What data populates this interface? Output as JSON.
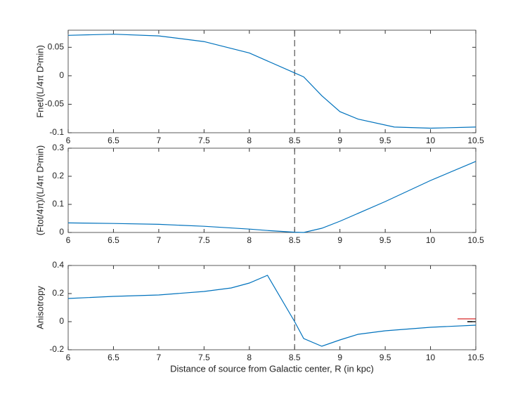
{
  "chart_data": [
    {
      "type": "line",
      "ylabel": "Fnet/(L/4π D²min)",
      "x": [
        6,
        6.5,
        7,
        7.5,
        7.8,
        8,
        8.2,
        8.5,
        8.6,
        8.8,
        9,
        9.2,
        9.6,
        10,
        10.5
      ],
      "series": [
        {
          "color": "#0072bd",
          "values": [
            0.071,
            0.073,
            0.07,
            0.06,
            0.048,
            0.04,
            0.026,
            0.005,
            -0.002,
            -0.035,
            -0.063,
            -0.076,
            -0.09,
            -0.092,
            -0.09
          ]
        }
      ],
      "xlim": [
        6,
        10.5
      ],
      "xticks": [
        6,
        6.5,
        7,
        7.5,
        8,
        8.5,
        9,
        9.5,
        10,
        10.5
      ],
      "ylim": [
        -0.1,
        0.08
      ],
      "yticks": [
        -0.1,
        -0.05,
        0,
        0.05
      ],
      "vline": 8.5
    },
    {
      "type": "line",
      "ylabel": "(Ftot/4π)/(L/4π D²min)",
      "x": [
        6,
        6.5,
        7,
        7.5,
        8,
        8.2,
        8.5,
        8.6,
        8.8,
        9,
        9.5,
        10,
        10.5
      ],
      "series": [
        {
          "color": "#0072bd",
          "values": [
            0.034,
            0.032,
            0.029,
            0.022,
            0.012,
            0.007,
            0.001,
            0.0,
            0.015,
            0.04,
            0.11,
            0.185,
            0.253
          ]
        }
      ],
      "xlim": [
        6,
        10.5
      ],
      "xticks": [
        6,
        6.5,
        7,
        7.5,
        8,
        8.5,
        9,
        9.5,
        10,
        10.5
      ],
      "ylim": [
        0,
        0.3
      ],
      "yticks": [
        0,
        0.1,
        0.2,
        0.3
      ],
      "vline": 8.5
    },
    {
      "type": "line",
      "ylabel": "Anisotropy",
      "xlabel": "Distance of source from Galactic center, R (in kpc)",
      "x": [
        6,
        6.5,
        7,
        7.5,
        7.8,
        8,
        8.2,
        8.5,
        8.6,
        8.8,
        9,
        9.2,
        9.5,
        10,
        10.5
      ],
      "series": [
        {
          "color": "#0072bd",
          "values": [
            0.165,
            0.18,
            0.19,
            0.215,
            0.24,
            0.275,
            0.33,
            0.0,
            -0.12,
            -0.175,
            -0.13,
            -0.09,
            -0.065,
            -0.04,
            -0.025
          ]
        }
      ],
      "xlim": [
        6,
        10.5
      ],
      "xticks": [
        6,
        6.5,
        7,
        7.5,
        8,
        8.5,
        9,
        9.5,
        10,
        10.5
      ],
      "ylim": [
        -0.2,
        0.4
      ],
      "yticks": [
        -0.2,
        0,
        0.2,
        0.4
      ],
      "vline": 8.5
    }
  ]
}
